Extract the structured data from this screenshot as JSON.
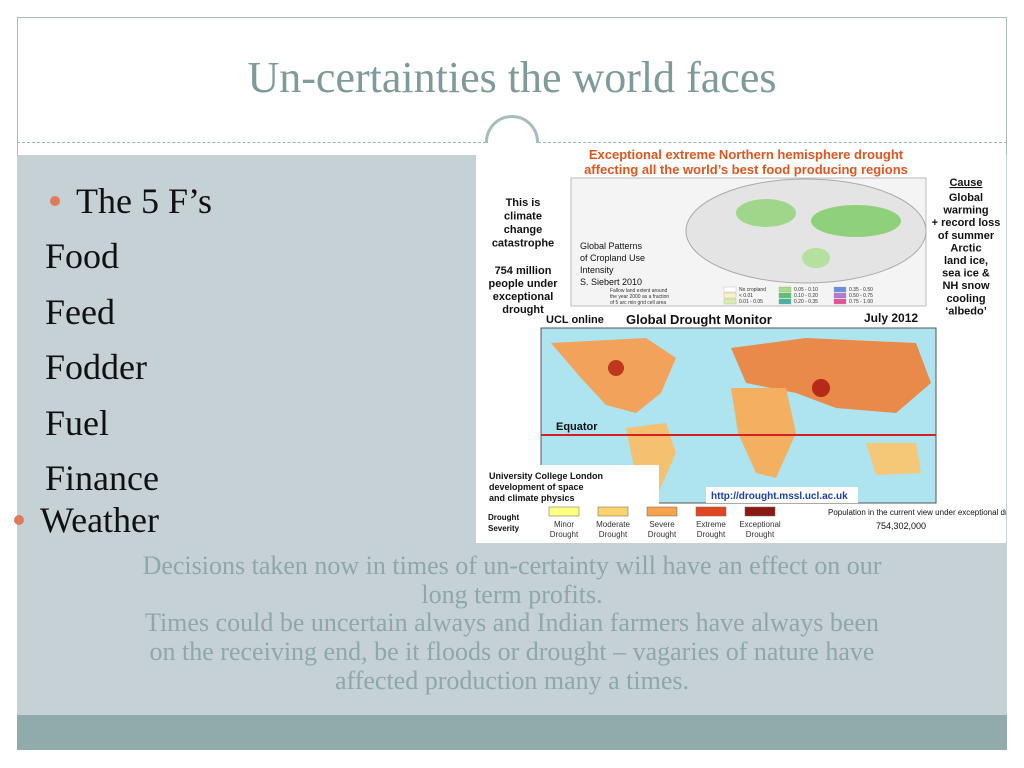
{
  "title": "Un-certainties the world faces",
  "bullet": "The 5 F’s",
  "items": [
    "Food",
    "Feed",
    "Fodder",
    "Fuel",
    "Finance"
  ],
  "weather": "Weather",
  "paragraph_lines": [
    "Decisions taken now in times of un-certainty will have an effect on our",
    "long term profits.",
    "Times could be uncertain always and Indian farmers have always been",
    "on the receiving end, be it floods or drought – vagaries of nature have",
    "affected production many a times."
  ],
  "figure": {
    "heading": [
      "Exceptional extreme Northern hemisphere drought",
      "affecting all the world’s best food producing regions"
    ],
    "left_note": [
      "This is",
      "climate",
      "change",
      "catastrophe"
    ],
    "left_count": [
      "754 million",
      "people under",
      "exceptional",
      "drought"
    ],
    "cause_title": "Cause",
    "cause": [
      "Global",
      "warming",
      "+ record loss",
      "of summer",
      "Arctic",
      "land ice,",
      "sea ice &",
      "NH snow",
      "cooling",
      "‘albedo’"
    ],
    "inset": [
      "Global Patterns",
      "of Cropland Use",
      "Intensity",
      "S. Siebert 2010"
    ],
    "fallow": [
      "Fallow land extent around",
      "the year 2000 as a fraction",
      "of 5 arc min grid cell area"
    ],
    "crop_legend": [
      "No cropland",
      "< 0.01",
      "0.01 - 0.05",
      "0.05 - 0.10",
      "0.10 - 0.20",
      "0.20 - 0.35",
      "0.35 - 0.50",
      "0.50 - 0.75",
      "0.75 - 1.00"
    ],
    "ucl_online": "UCL online",
    "monitor": "Global Drought Monitor",
    "date": "July 2012",
    "equator": "Equator",
    "ucl": [
      "University College London",
      "development of space",
      "and climate physics"
    ],
    "url": "http://drought.mssl.ucl.ac.uk",
    "severity_title": [
      "Drought",
      "Severity"
    ],
    "severity": [
      [
        "Minor",
        "Drought"
      ],
      [
        "Moderate",
        "Drought"
      ],
      [
        "Severe",
        "Drought"
      ],
      [
        "Extreme",
        "Drought"
      ],
      [
        "Exceptional",
        "Drought"
      ]
    ],
    "population_label": "Population in the current view under exceptional drought:",
    "population": "754,302,000"
  }
}
